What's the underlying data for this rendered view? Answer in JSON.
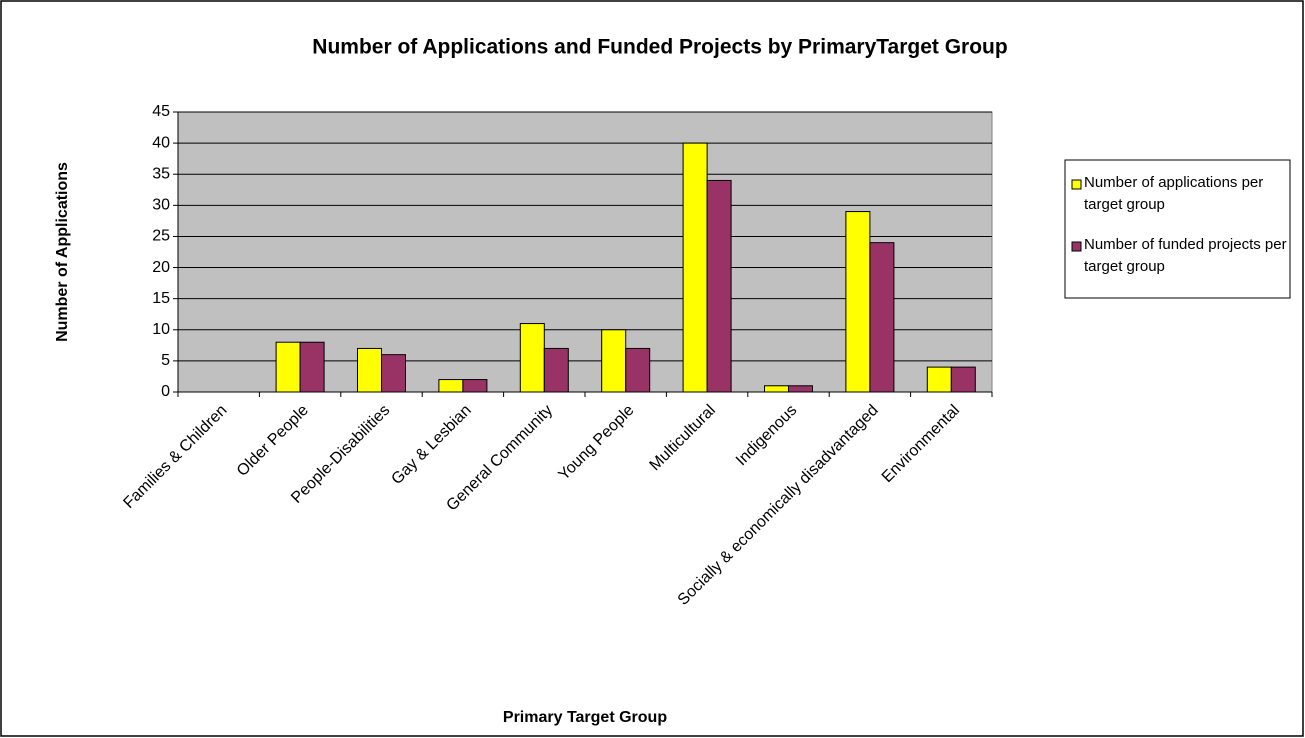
{
  "chart_data": {
    "type": "bar",
    "title": "Number of Applications and Funded Projects by PrimaryTarget Group",
    "x_label": "Primary Target Group",
    "y_label": "Number of Applications",
    "categories": [
      "Families & Children",
      "Older People",
      "People-Disabilities",
      "Gay & Lesbian",
      "General Community",
      "Young People",
      "Multicultural",
      "Indigenous",
      "Socially & economically disadvantaged",
      "Environmental"
    ],
    "series": [
      {
        "name": "Number of applications per target group",
        "color": "#ffff00",
        "values": [
          0,
          8,
          7,
          2,
          11,
          10,
          40,
          1,
          29,
          4
        ]
      },
      {
        "name": "Number of funded projects per target group",
        "color": "#993366",
        "values": [
          0,
          8,
          6,
          2,
          7,
          7,
          34,
          1,
          24,
          4
        ]
      }
    ],
    "ylim": [
      0,
      45
    ],
    "yticks": [
      0,
      5,
      10,
      15,
      20,
      25,
      30,
      35,
      40,
      45
    ],
    "grid": true,
    "legend": "right"
  }
}
